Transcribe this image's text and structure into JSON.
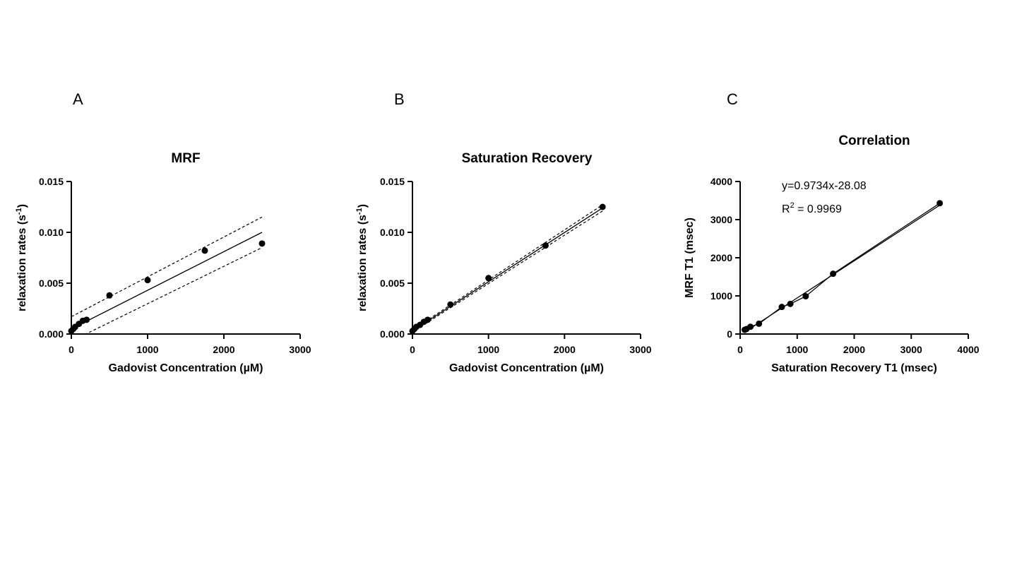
{
  "chart_data": [
    {
      "panel": "A",
      "type": "scatter",
      "title": "MRF",
      "xlabel": "Gadovist Concentration (µM)",
      "ylabel": "relaxation rates (s",
      "ylabel_sup": "-1",
      "ylabel_end": ")",
      "xlim": [
        0,
        3000
      ],
      "ylim": [
        0,
        0.015
      ],
      "xticks": [
        0,
        1000,
        2000,
        3000
      ],
      "xtick_labels": [
        "0",
        "1000",
        "2000",
        "3000"
      ],
      "yticks": [
        0,
        0.005,
        0.01,
        0.015
      ],
      "ytick_labels": [
        "0.000",
        "0.005",
        "0.010",
        "0.015"
      ],
      "points": {
        "x": [
          0,
          25,
          50,
          100,
          150,
          200,
          500,
          1000,
          1750,
          2500
        ],
        "y": [
          0.0003,
          0.0005,
          0.0007,
          0.001,
          0.0013,
          0.0014,
          0.0038,
          0.0053,
          0.0082,
          0.0089
        ]
      },
      "fit_line": {
        "x": [
          0,
          2500
        ],
        "y": [
          0.0005,
          0.01
        ]
      },
      "ci_upper": {
        "x": [
          0,
          2500
        ],
        "y": [
          0.0017,
          0.0115
        ]
      },
      "ci_lower": {
        "x": [
          0,
          2500
        ],
        "y": [
          -0.0007,
          0.0085
        ]
      }
    },
    {
      "panel": "B",
      "type": "scatter",
      "title": "Saturation Recovery",
      "xlabel": "Gadovist Concentration (µM)",
      "ylabel": "relaxation rates (s",
      "ylabel_sup": "-1",
      "ylabel_end": ")",
      "xlim": [
        0,
        3000
      ],
      "ylim": [
        0,
        0.015
      ],
      "xticks": [
        0,
        1000,
        2000,
        3000
      ],
      "xtick_labels": [
        "0",
        "1000",
        "2000",
        "3000"
      ],
      "yticks": [
        0,
        0.005,
        0.01,
        0.015
      ],
      "ytick_labels": [
        "0.000",
        "0.005",
        "0.010",
        "0.015"
      ],
      "points": {
        "x": [
          0,
          25,
          50,
          100,
          150,
          200,
          500,
          1000,
          1750,
          2500
        ],
        "y": [
          0.0003,
          0.0005,
          0.0007,
          0.0009,
          0.0012,
          0.0014,
          0.0029,
          0.0055,
          0.0087,
          0.0125
        ]
      },
      "fit_line": {
        "x": [
          0,
          2500
        ],
        "y": [
          0.0003,
          0.0124
        ]
      },
      "ci_upper": {
        "x": [
          0,
          2500
        ],
        "y": [
          0.0004,
          0.0127
        ]
      },
      "ci_lower": {
        "x": [
          0,
          2500
        ],
        "y": [
          0.0002,
          0.0121
        ]
      }
    },
    {
      "panel": "C",
      "type": "scatter",
      "title": "Correlation",
      "xlabel": "Saturation Recovery T1 (msec)",
      "ylabel": "MRF T1 (msec)",
      "xlim": [
        0,
        4000
      ],
      "ylim": [
        0,
        4000
      ],
      "xticks": [
        0,
        1000,
        2000,
        3000,
        4000
      ],
      "xtick_labels": [
        "0",
        "1000",
        "2000",
        "3000",
        "4000"
      ],
      "yticks": [
        0,
        1000,
        2000,
        3000,
        4000
      ],
      "ytick_labels": [
        "0",
        "1000",
        "2000",
        "3000",
        "4000"
      ],
      "points": {
        "x": [
          80,
          110,
          180,
          330,
          730,
          880,
          1150,
          1630,
          3500
        ],
        "y": [
          110,
          130,
          190,
          270,
          710,
          790,
          990,
          1580,
          3430
        ]
      },
      "fit_line": {
        "x": [
          80,
          3500
        ],
        "y": [
          50,
          3379
        ]
      },
      "equation": "y=0.9734x-28.08",
      "r2_prefix": "R",
      "r2_sup": "2",
      "r2_value": " = 0.9969"
    }
  ]
}
